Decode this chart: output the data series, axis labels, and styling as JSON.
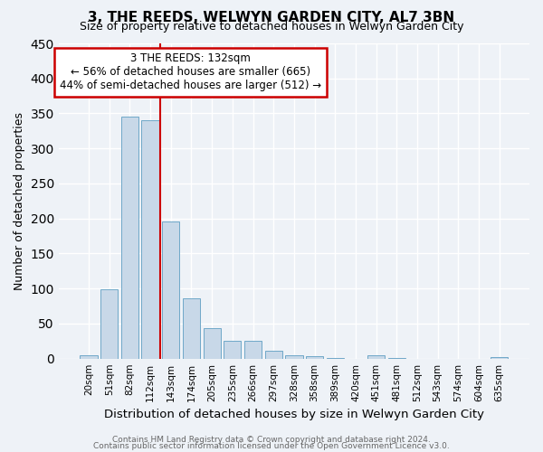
{
  "title": "3, THE REEDS, WELWYN GARDEN CITY, AL7 3BN",
  "subtitle": "Size of property relative to detached houses in Welwyn Garden City",
  "xlabel": "Distribution of detached houses by size in Welwyn Garden City",
  "ylabel": "Number of detached properties",
  "bar_color": "#c8d8e8",
  "bar_edge_color": "#6fa8c8",
  "categories": [
    "20sqm",
    "51sqm",
    "82sqm",
    "112sqm",
    "143sqm",
    "174sqm",
    "205sqm",
    "235sqm",
    "266sqm",
    "297sqm",
    "328sqm",
    "358sqm",
    "389sqm",
    "420sqm",
    "451sqm",
    "481sqm",
    "512sqm",
    "543sqm",
    "574sqm",
    "604sqm",
    "635sqm"
  ],
  "values": [
    5,
    99,
    345,
    340,
    196,
    86,
    44,
    26,
    25,
    11,
    5,
    4,
    1,
    0,
    5,
    1,
    0,
    0,
    0,
    0,
    2
  ],
  "ylim": [
    0,
    450
  ],
  "yticks": [
    0,
    50,
    100,
    150,
    200,
    250,
    300,
    350,
    400,
    450
  ],
  "vline_x": 3.5,
  "vline_color": "#cc0000",
  "annotation_text": "3 THE REEDS: 132sqm\n← 56% of detached houses are smaller (665)\n44% of semi-detached houses are larger (512) →",
  "annotation_box_color": "#cc0000",
  "footnote_line1": "Contains HM Land Registry data © Crown copyright and database right 2024.",
  "footnote_line2": "Contains public sector information licensed under the Open Government Licence v3.0.",
  "background_color": "#eef2f7",
  "grid_color": "#ffffff"
}
